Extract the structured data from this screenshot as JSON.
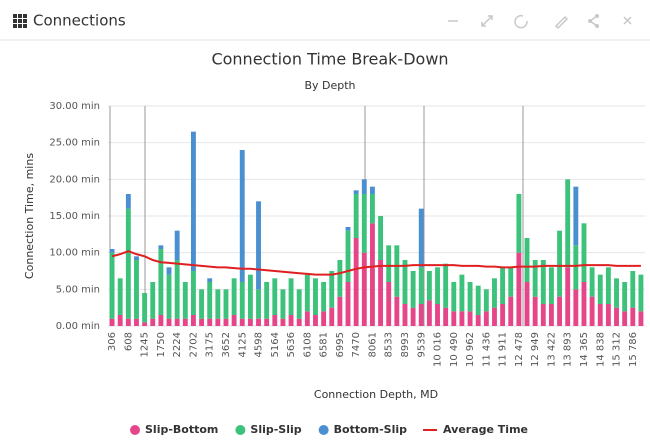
{
  "header": {
    "title": "Connections"
  },
  "chart_data": {
    "type": "bar",
    "stacked": true,
    "title": "Connection Time Break-Down",
    "subtitle": "By Depth",
    "y_label": "Connection Time, mins",
    "x_label": "Connection Depth, MD",
    "categories": [
      "306",
      null,
      "608",
      null,
      "1245",
      null,
      "1750",
      null,
      "2224",
      null,
      "2702",
      null,
      "3175",
      null,
      "3652",
      null,
      "4125",
      null,
      "4598",
      null,
      "5164",
      null,
      "5636",
      null,
      "6108",
      null,
      "6581",
      null,
      "6995",
      null,
      "7470",
      null,
      "8061",
      null,
      "8533",
      null,
      "8993",
      null,
      "9539",
      null,
      "10 016",
      null,
      "10 490",
      null,
      "10 962",
      null,
      "11 436",
      null,
      "11 911",
      null,
      "12 478",
      null,
      "12 949",
      null,
      "13 422",
      null,
      "13 893",
      null,
      "14 365",
      null,
      "14 838",
      null,
      "15 312",
      null,
      "15 786",
      null
    ],
    "ylim": [
      0,
      30
    ],
    "yticks": [
      {
        "value": 0,
        "label": "0.00 min"
      },
      {
        "value": 5,
        "label": "5.00 min"
      },
      {
        "value": 10,
        "label": "10.00 min"
      },
      {
        "value": 15,
        "label": "15.00 min"
      },
      {
        "value": 20,
        "label": "20.00 min"
      },
      {
        "value": 25,
        "label": "25.00 min"
      },
      {
        "value": 30,
        "label": "30.00 min"
      }
    ],
    "grid": true,
    "legend": "bottom",
    "series": [
      {
        "name": "Slip-Bottom",
        "color": "#e5468a",
        "values": [
          1,
          1.5,
          1,
          1,
          0.5,
          1,
          1.5,
          1,
          1,
          1,
          1.5,
          1,
          1,
          1,
          1,
          1.5,
          1,
          1,
          1,
          1,
          1.5,
          1,
          1.5,
          1,
          2,
          1.5,
          2,
          2.5,
          4,
          6,
          12,
          10,
          14,
          9,
          6,
          4,
          3,
          2.5,
          3,
          3.5,
          3,
          2.5,
          2,
          2,
          2,
          1.5,
          2,
          2.5,
          3,
          4,
          10,
          6,
          4,
          3,
          3,
          4,
          8,
          5,
          6,
          4,
          3,
          3,
          2.5,
          2,
          2.5,
          2
        ]
      },
      {
        "name": "Slip-Slip",
        "color": "#3cc27a",
        "values": [
          9,
          5,
          15,
          8,
          4,
          5,
          9,
          6,
          8,
          5,
          6,
          4,
          5,
          4,
          4,
          5,
          5,
          6,
          4,
          5,
          5,
          4,
          5,
          4,
          5,
          5,
          4,
          5,
          5,
          7,
          6,
          8,
          4,
          6,
          5,
          7,
          6,
          5,
          5,
          4,
          5,
          6,
          4,
          5,
          4,
          4,
          3,
          4,
          5,
          4,
          8,
          6,
          5,
          6,
          5,
          9,
          12,
          6,
          8,
          4,
          4,
          5,
          4,
          4,
          5,
          5
        ]
      },
      {
        "name": "Bottom-Slip",
        "color": "#4a8fd0",
        "values": [
          0.5,
          0,
          2,
          0.5,
          0,
          0,
          0.5,
          1,
          4,
          0,
          19,
          0,
          0.5,
          0,
          0,
          0,
          18,
          0,
          12,
          0,
          0,
          0,
          0,
          0,
          0,
          0,
          0,
          0,
          0,
          0.5,
          0.5,
          2,
          1,
          0,
          0,
          0,
          0,
          0,
          8,
          0,
          0,
          0,
          0,
          0,
          0,
          0,
          0,
          0,
          0,
          0,
          0,
          0,
          0,
          0,
          0,
          0,
          0,
          8,
          0,
          0,
          0,
          0,
          0,
          0,
          0,
          0
        ]
      },
      {
        "name": "Average Time",
        "type": "line",
        "color": "#e02020",
        "values": [
          9.5,
          9.8,
          10.2,
          9.8,
          9.5,
          9,
          8.7,
          8.6,
          8.5,
          8.4,
          8.3,
          8.2,
          8.1,
          8,
          8,
          7.9,
          7.8,
          7.8,
          7.7,
          7.6,
          7.5,
          7.4,
          7.3,
          7.2,
          7.1,
          7,
          7,
          7,
          7.2,
          7.5,
          7.8,
          8,
          8.1,
          8.2,
          8.2,
          8.2,
          8.2,
          8.3,
          8.3,
          8.3,
          8.3,
          8.3,
          8.3,
          8.2,
          8.2,
          8.2,
          8.1,
          8.1,
          8,
          8,
          8.1,
          8.1,
          8.1,
          8.2,
          8.2,
          8.2,
          8.2,
          8.2,
          8.3,
          8.3,
          8.3,
          8.3,
          8.2,
          8.2,
          8.2,
          8.2
        ]
      }
    ]
  }
}
